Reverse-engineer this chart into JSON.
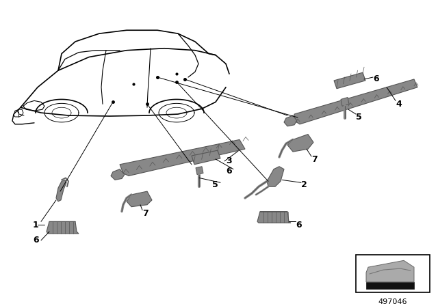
{
  "background_color": "#ffffff",
  "part_number": "497046",
  "car_color": "#000000",
  "part_color_light": "#aaaaaa",
  "part_color_mid": "#888888",
  "part_color_dark": "#555555",
  "label_fontsize": 9,
  "leader_lw": 0.7,
  "car_lw": 1.0
}
